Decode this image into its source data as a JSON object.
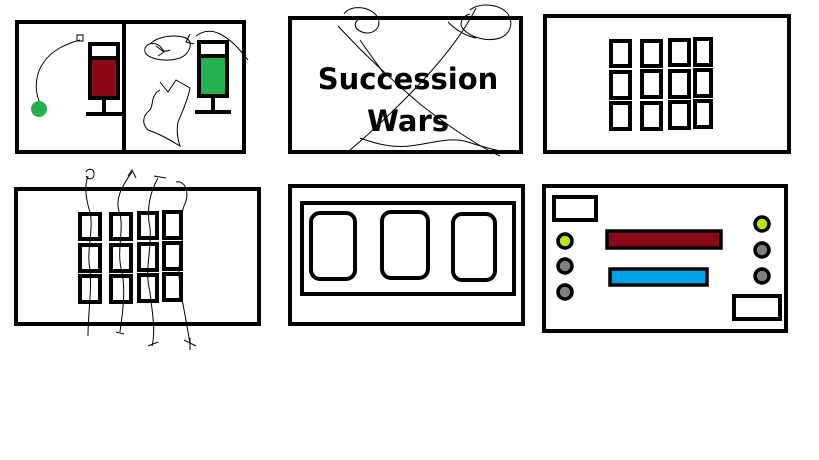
{
  "title_card": {
    "line1": "Succession",
    "line2": "Wars"
  },
  "colors": {
    "outline": "#000000",
    "background": "#ffffff",
    "dark_red": "#8b0a1a",
    "green": "#22b14c",
    "lime": "#b5e61d",
    "gray": "#7f7f7f",
    "blue": "#00a2e8"
  }
}
